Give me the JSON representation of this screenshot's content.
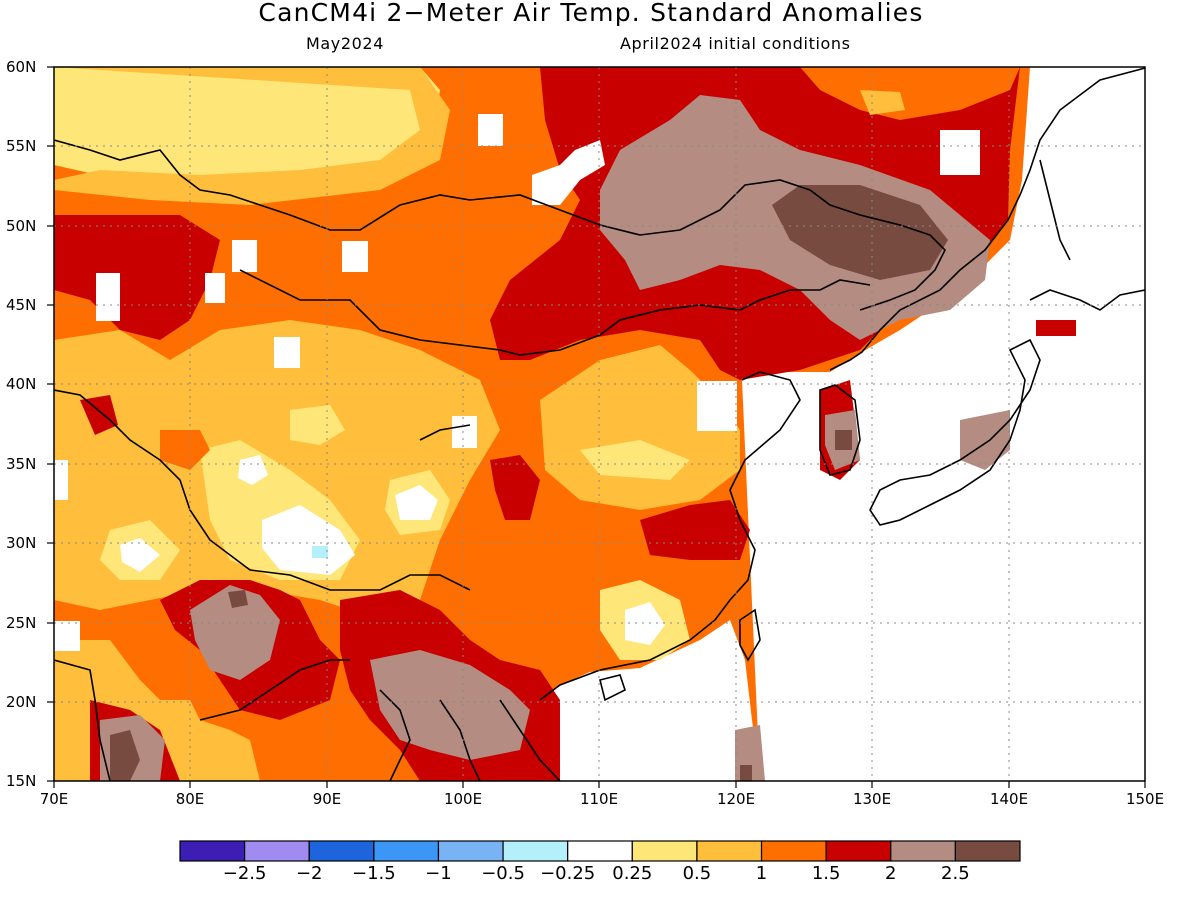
{
  "header": {
    "title": "CanCM4i 2−Meter Air Temp. Standard Anomalies",
    "target_month": "May2024",
    "init_conditions": "April2024 initial conditions"
  },
  "map": {
    "lat_labels": [
      "60N",
      "55N",
      "50N",
      "45N",
      "40N",
      "35N",
      "30N",
      "25N",
      "20N",
      "15N"
    ],
    "lon_labels": [
      "70E",
      "80E",
      "90E",
      "100E",
      "110E",
      "120E",
      "130E",
      "140E",
      "150E"
    ],
    "lon_range": [
      70,
      150
    ],
    "lat_range": [
      15,
      60
    ],
    "grid": "dotted"
  },
  "colorbar": {
    "colors": [
      "#3c1eb4",
      "#a08cf0",
      "#1e64dc",
      "#3c96f5",
      "#78b4f5",
      "#b4f0fa",
      "#ffffff",
      "#ffe678",
      "#ffbe3c",
      "#ff6e00",
      "#c80000",
      "#b48c82",
      "#784b41"
    ],
    "labels": [
      "−2.5",
      "−2",
      "−1.5",
      "−1",
      "−0.5",
      "−0.25",
      "0.25",
      "0.5",
      "1",
      "1.5",
      "2",
      "2.5"
    ]
  }
}
